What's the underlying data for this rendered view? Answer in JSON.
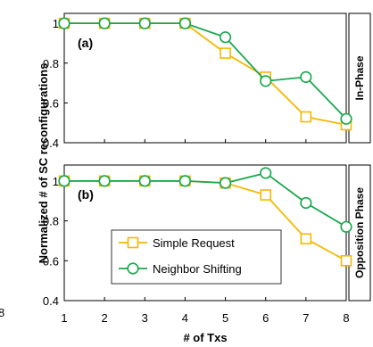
{
  "chart_data": {
    "type": "line",
    "xlabel": "# of Txs",
    "ylabel": "Normalized # of SC reconfigurations",
    "x": [
      1,
      2,
      3,
      4,
      5,
      6,
      7,
      8
    ],
    "xticks": [
      "1",
      "2",
      "3",
      "4",
      "5",
      "6",
      "7",
      "8"
    ],
    "grid": false,
    "legend_position": "bottom-left of panel (b)",
    "series_styles": [
      {
        "name": "Simple Request",
        "color": "#f5b800",
        "marker": "square"
      },
      {
        "name": "Neighbor Shifting",
        "color": "#17a84b",
        "marker": "circle"
      }
    ],
    "panels": [
      {
        "label": "(a)",
        "strip": "In-Phase",
        "ylim": [
          0.4,
          1.05
        ],
        "yticks": [
          "0.4",
          "0.6",
          "0.8",
          "1"
        ],
        "yticks_values": [
          0.4,
          0.6,
          0.8,
          1.0
        ],
        "series": [
          {
            "name": "Simple Request",
            "values": [
              1.0,
              1.0,
              1.0,
              1.0,
              0.85,
              0.73,
              0.53,
              0.49
            ]
          },
          {
            "name": "Neighbor Shifting",
            "values": [
              1.0,
              1.0,
              1.0,
              1.0,
              0.93,
              0.71,
              0.73,
              0.52
            ]
          }
        ]
      },
      {
        "label": "(b)",
        "strip": "Opposition Phase",
        "ylim": [
          0.4,
          1.08
        ],
        "yticks": [
          "0.4",
          "0.6",
          "0.8",
          "1"
        ],
        "yticks_values": [
          0.4,
          0.6,
          0.8,
          1.0
        ],
        "series": [
          {
            "name": "Simple Request",
            "values": [
              1.0,
              1.0,
              1.0,
              1.0,
              0.99,
              0.93,
              0.71,
              0.6
            ]
          },
          {
            "name": "Neighbor Shifting",
            "values": [
              1.0,
              1.0,
              1.0,
              1.0,
              0.99,
              1.04,
              0.89,
              0.77
            ]
          }
        ]
      }
    ],
    "legend": [
      {
        "name": "Simple Request",
        "label": "Simple Request"
      },
      {
        "name": "Neighbor Shifting",
        "label": "Neighbor Shifting"
      }
    ],
    "stray_label": "8"
  }
}
